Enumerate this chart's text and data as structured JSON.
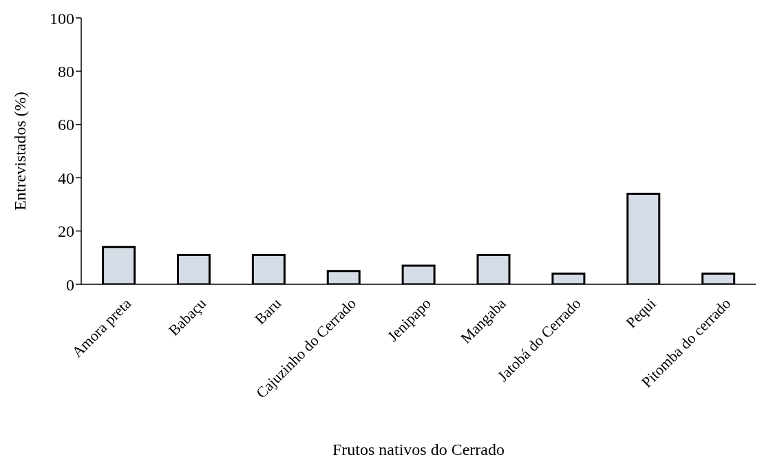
{
  "chart_data": {
    "type": "bar",
    "xlabel": "Frutos nativos do Cerrado",
    "ylabel": "Entrevistados (%)",
    "categories": [
      "Amora preta",
      "Babaçu",
      "Baru",
      "Cajuzinho do Cerrado",
      "Jenipapo",
      "Mangaba",
      "Jatobá do Cerrado",
      "Pequi",
      "Pitomba do cerrado"
    ],
    "values": [
      14,
      11,
      11,
      5,
      7,
      11,
      4,
      34,
      4
    ],
    "color": "#d6dce5",
    "ylim": [
      0,
      100
    ],
    "yticks": [
      0,
      20,
      40,
      60,
      80,
      100
    ],
    "grid": false,
    "legend": false
  }
}
